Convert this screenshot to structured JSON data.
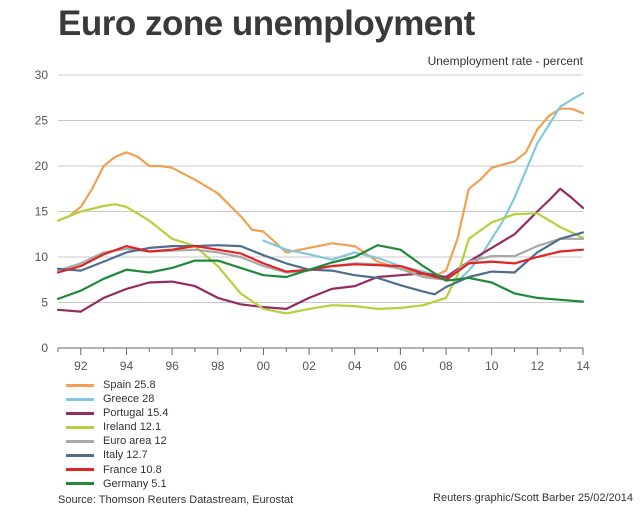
{
  "chart_data": {
    "type": "line",
    "title": "Euro zone unemployment",
    "subtitle": "Unemployment rate - percent",
    "xlabel": "",
    "ylabel": "",
    "x_ticks": [
      {
        "value": 1992,
        "label": "92"
      },
      {
        "value": 1994,
        "label": "94"
      },
      {
        "value": 1996,
        "label": "96"
      },
      {
        "value": 1998,
        "label": "98"
      },
      {
        "value": 2000,
        "label": "00"
      },
      {
        "value": 2002,
        "label": "02"
      },
      {
        "value": 2004,
        "label": "04"
      },
      {
        "value": 2006,
        "label": "06"
      },
      {
        "value": 2008,
        "label": "08"
      },
      {
        "value": 2010,
        "label": "10"
      },
      {
        "value": 2012,
        "label": "12"
      },
      {
        "value": 2014,
        "label": "14"
      }
    ],
    "y_ticks": [
      0,
      5,
      10,
      15,
      20,
      25,
      30
    ],
    "xlim": [
      1991,
      2014
    ],
    "ylim": [
      0,
      30
    ],
    "grid": "horizontal",
    "legend_position": "bottom-left",
    "series": [
      {
        "name": "Spain 25.8",
        "color": "#f0a050",
        "x": [
          1991,
          1991.5,
          1992,
          1992.5,
          1993,
          1993.5,
          1994,
          1994.5,
          1995,
          1995.5,
          1996,
          1997,
          1998,
          1999,
          1999.5,
          2000,
          2001,
          2002,
          2003,
          2004,
          2005,
          2006,
          2007,
          2007.5,
          2008,
          2008.5,
          2009,
          2009.5,
          2010,
          2011,
          2011.5,
          2012,
          2012.5,
          2013,
          2013.5,
          2014
        ],
        "y": [
          14,
          14.5,
          15.5,
          17.5,
          20,
          21,
          21.5,
          21,
          20,
          20,
          19.8,
          18.5,
          17,
          14.5,
          13,
          12.8,
          10.5,
          11,
          11.5,
          11.2,
          9.5,
          8.7,
          8,
          7.9,
          8.5,
          12,
          17.5,
          18.5,
          19.8,
          20.5,
          21.5,
          24,
          25.5,
          26.3,
          26.3,
          25.8
        ]
      },
      {
        "name": "Greece 28",
        "color": "#84c7dd",
        "x": [
          2000,
          2001,
          2002,
          2003,
          2004,
          2005,
          2006,
          2007,
          2008,
          2008.5,
          2009,
          2009.5,
          2010,
          2010.5,
          2011,
          2011.5,
          2012,
          2012.5,
          2013,
          2013.5,
          2014
        ],
        "y": [
          11.8,
          10.8,
          10.3,
          9.7,
          10.5,
          9.9,
          9,
          8.4,
          7.6,
          7.3,
          8.5,
          10,
          12,
          14,
          16.5,
          19.5,
          22.5,
          24.5,
          26.5,
          27.3,
          28
        ]
      },
      {
        "name": "Portugal 15.4",
        "color": "#952b60",
        "x": [
          1991,
          1992,
          1993,
          1994,
          1995,
          1996,
          1997,
          1998,
          1999,
          2000,
          2001,
          2002,
          2003,
          2004,
          2005,
          2006,
          2007,
          2008,
          2009,
          2010,
          2011,
          2012,
          2012.5,
          2013,
          2013.5,
          2014
        ],
        "y": [
          4.2,
          4,
          5.5,
          6.5,
          7.2,
          7.3,
          6.8,
          5.5,
          4.8,
          4.5,
          4.3,
          5.5,
          6.5,
          6.8,
          7.8,
          8,
          8.2,
          7.8,
          9.5,
          11,
          12.5,
          15,
          16.2,
          17.5,
          16.5,
          15.4
        ]
      },
      {
        "name": "Ireland 12.1",
        "color": "#b2d23b",
        "x": [
          1991,
          1992,
          1993,
          1993.5,
          1994,
          1995,
          1996,
          1997,
          1998,
          1999,
          2000,
          2001,
          2002,
          2003,
          2004,
          2005,
          2006,
          2007,
          2008,
          2008.5,
          2009,
          2010,
          2011,
          2012,
          2013,
          2013.5,
          2014
        ],
        "y": [
          14,
          15,
          15.6,
          15.8,
          15.5,
          14,
          12,
          11.2,
          9,
          6,
          4.3,
          3.8,
          4.3,
          4.7,
          4.6,
          4.3,
          4.4,
          4.7,
          5.5,
          8,
          12,
          13.8,
          14.7,
          14.8,
          13.3,
          12.7,
          12.1
        ]
      },
      {
        "name": "Euro area 12",
        "color": "#a8a8a8",
        "x": [
          1991,
          1992,
          1993,
          1994,
          1995,
          1996,
          1997,
          1998,
          1999,
          2000,
          2001,
          2002,
          2003,
          2004,
          2005,
          2006,
          2007,
          2008,
          2009,
          2010,
          2011,
          2012,
          2013,
          2014
        ],
        "y": [
          8.5,
          9.3,
          10.5,
          10.9,
          10.6,
          10.7,
          10.8,
          10.5,
          10,
          9,
          8.3,
          8.5,
          9,
          9.3,
          9.2,
          8.7,
          7.8,
          7.5,
          9.5,
          10.1,
          10.1,
          11.2,
          12,
          12
        ]
      },
      {
        "name": "Italy 12.7",
        "color": "#4f6e8f",
        "x": [
          1991,
          1992,
          1993,
          1994,
          1995,
          1996,
          1997,
          1998,
          1999,
          2000,
          2001,
          2002,
          2003,
          2004,
          2005,
          2006,
          2007,
          2007.5,
          2008,
          2009,
          2010,
          2011,
          2012,
          2013,
          2014
        ],
        "y": [
          8.7,
          8.5,
          9.5,
          10.5,
          11,
          11.2,
          11.2,
          11.3,
          11.2,
          10.2,
          9.3,
          8.6,
          8.5,
          8,
          7.7,
          6.9,
          6.2,
          5.9,
          6.7,
          7.8,
          8.4,
          8.3,
          10.5,
          12,
          12.7
        ]
      },
      {
        "name": "France 10.8",
        "color": "#e02424",
        "x": [
          1991,
          1992,
          1993,
          1994,
          1995,
          1996,
          1997,
          1998,
          1999,
          2000,
          2001,
          2002,
          2003,
          2004,
          2005,
          2006,
          2007,
          2008,
          2009,
          2010,
          2011,
          2012,
          2013,
          2014
        ],
        "y": [
          8.3,
          9,
          10.3,
          11.2,
          10.6,
          10.8,
          11.2,
          10.8,
          10.4,
          9.3,
          8.4,
          8.6,
          9,
          9.2,
          9.1,
          9,
          8.2,
          7.5,
          9.3,
          9.5,
          9.3,
          10,
          10.6,
          10.8
        ]
      },
      {
        "name": "Germany 5.1",
        "color": "#1f8a3b",
        "x": [
          1991,
          1992,
          1993,
          1994,
          1995,
          1996,
          1997,
          1998,
          1999,
          2000,
          2001,
          2002,
          2003,
          2004,
          2005,
          2006,
          2007,
          2008,
          2009,
          2010,
          2011,
          2012,
          2013,
          2014
        ],
        "y": [
          5.4,
          6.3,
          7.6,
          8.6,
          8.3,
          8.8,
          9.6,
          9.6,
          8.8,
          8,
          7.8,
          8.6,
          9.4,
          10,
          11.3,
          10.8,
          9,
          7.4,
          7.7,
          7.2,
          6,
          5.5,
          5.3,
          5.1
        ]
      }
    ]
  },
  "source": "Source: Thomson Reuters Datastream, Eurostat",
  "credit": "Reuters graphic/Scott Barber 25/02/2014"
}
